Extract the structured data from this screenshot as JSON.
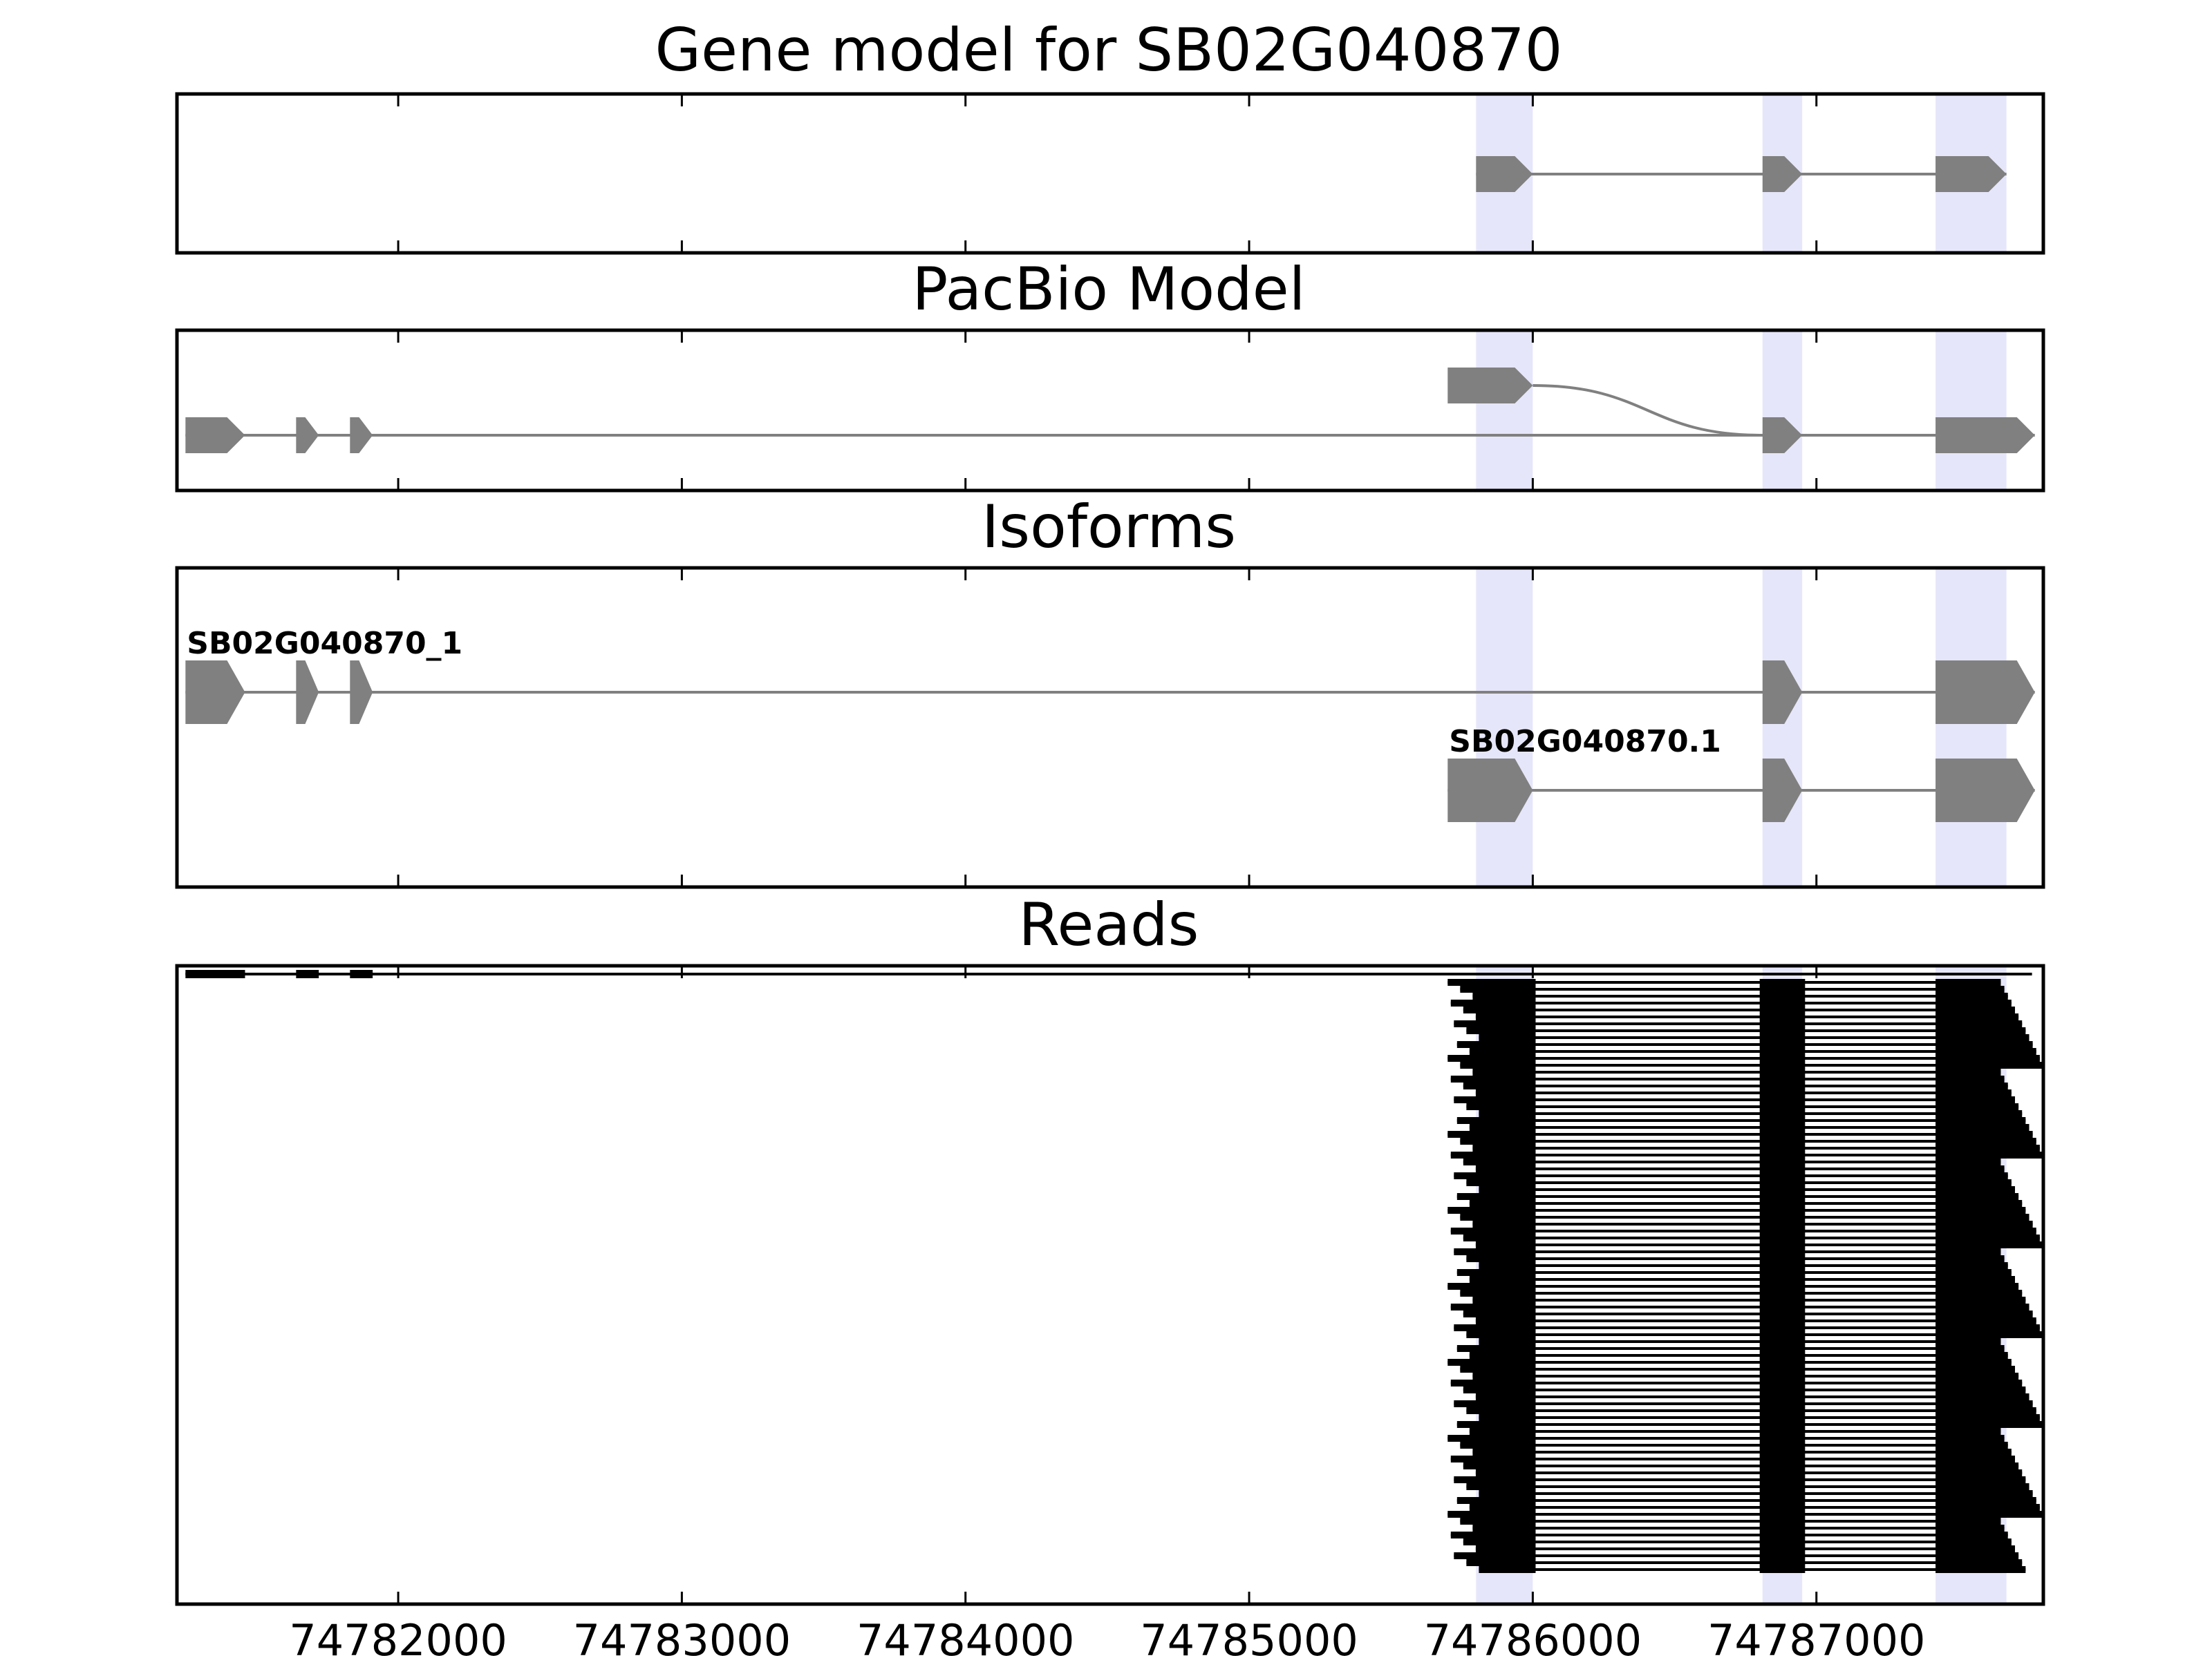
{
  "chart_data": {
    "type": "gene-structure",
    "x_axis": {
      "xlim": [
        74781220,
        74787800
      ],
      "ticks": [
        74782000,
        74783000,
        74784000,
        74785000,
        74786000,
        74787000
      ],
      "tick_labels": [
        "74782000",
        "74783000",
        "74784000",
        "74785000",
        "74786000",
        "74787000"
      ]
    },
    "colors": {
      "feature": "#808080",
      "highlight": "#e6e6fa",
      "read": "#000000",
      "frame": "#000000"
    },
    "highlights": [
      [
        74785800,
        74786000
      ],
      [
        74786810,
        74786950
      ],
      [
        74787420,
        74787670
      ]
    ],
    "panels": [
      {
        "title": "Gene model for SB02G040870",
        "models": [
          {
            "exons": [
              [
                74785800,
                74786000
              ],
              [
                74786810,
                74786950
              ],
              [
                74787420,
                74787670
              ]
            ]
          }
        ]
      },
      {
        "title": "PacBio Model",
        "models": [
          {
            "exons": [
              [
                74785700,
                74786000
              ]
            ],
            "join_curve_to": 74786810
          },
          {
            "exons": [
              [
                74781250,
                74781460
              ],
              [
                74781640,
                74781720
              ],
              [
                74781830,
                74781910
              ],
              [
                74786810,
                74786950
              ],
              [
                74787420,
                74787770
              ]
            ]
          }
        ]
      },
      {
        "title": "Isoforms",
        "models": [
          {
            "label": "SB02G040870_1",
            "exons": [
              [
                74781250,
                74781460
              ],
              [
                74781640,
                74781720
              ],
              [
                74781830,
                74781910
              ],
              [
                74786810,
                74786950
              ],
              [
                74787420,
                74787770
              ]
            ]
          },
          {
            "label": "SB02G040870.1",
            "exons": [
              [
                74785700,
                74786000
              ],
              [
                74786810,
                74786950
              ],
              [
                74787420,
                74787770
              ]
            ]
          }
        ]
      },
      {
        "title": "Reads",
        "reads_summary": {
          "long_read": {
            "exons": [
              [
                74781250,
                74781460
              ],
              [
                74781640,
                74781720
              ],
              [
                74781830,
                74781910
              ]
            ],
            "end": 74787760
          },
          "count": 86,
          "starts_range": [
            74785700,
            74785810
          ],
          "exon_blocks": [
            [
              74785800,
              74786010
            ],
            [
              74786800,
              74786960
            ],
            [
              74787420,
              74787690
            ]
          ],
          "ends_range": [
            74787650,
            74787800
          ]
        }
      }
    ]
  }
}
